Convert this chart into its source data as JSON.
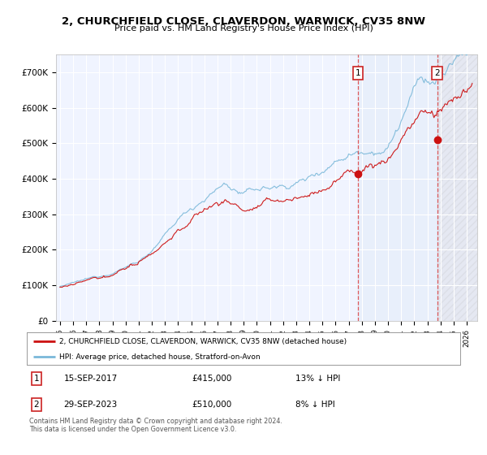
{
  "title": "2, CHURCHFIELD CLOSE, CLAVERDON, WARWICK, CV35 8NW",
  "subtitle": "Price paid vs. HM Land Registry's House Price Index (HPI)",
  "title_fontsize": 9.5,
  "subtitle_fontsize": 8,
  "ylabel_ticks": [
    "£0",
    "£100K",
    "£200K",
    "£300K",
    "£400K",
    "£500K",
    "£600K",
    "£700K"
  ],
  "ytick_values": [
    0,
    100000,
    200000,
    300000,
    400000,
    500000,
    600000,
    700000
  ],
  "ylim": [
    0,
    750000
  ],
  "xlim_start": 1994.7,
  "xlim_end": 2026.8,
  "hpi_color": "#7ab8d9",
  "price_color": "#cc1111",
  "sale1_x": 2017.708,
  "sale1_y": 415000,
  "sale1_label": "1",
  "sale2_x": 2023.747,
  "sale2_y": 510000,
  "sale2_label": "2",
  "legend_house_label": "2, CHURCHFIELD CLOSE, CLAVERDON, WARWICK, CV35 8NW (detached house)",
  "legend_hpi_label": "HPI: Average price, detached house, Stratford-on-Avon",
  "table_rows": [
    {
      "num": "1",
      "date": "15-SEP-2017",
      "price": "£415,000",
      "pct": "13% ↓ HPI"
    },
    {
      "num": "2",
      "date": "29-SEP-2023",
      "price": "£510,000",
      "pct": "8% ↓ HPI"
    }
  ],
  "footnote": "Contains HM Land Registry data © Crown copyright and database right 2024.\nThis data is licensed under the Open Government Licence v3.0.",
  "bg_color": "#ffffff",
  "plot_bg_color": "#f0f4ff",
  "grid_color": "#ffffff",
  "shade_between_color": "#dae8f5",
  "hatch_color": "#cccccc"
}
